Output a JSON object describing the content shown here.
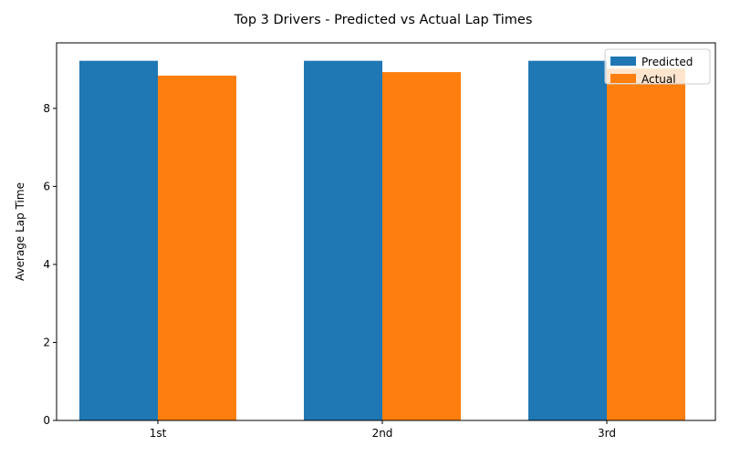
{
  "chart_data": {
    "type": "bar",
    "title": "Top 3 Drivers - Predicted vs Actual Lap Times",
    "xlabel": "",
    "ylabel": "Average Lap Time",
    "categories": [
      "1st",
      "2nd",
      "3rd"
    ],
    "series": [
      {
        "name": "Predicted",
        "color": "#1f77b4",
        "values": [
          9.22,
          9.22,
          9.22
        ]
      },
      {
        "name": "Actual",
        "color": "#ff7f0e",
        "values": [
          8.84,
          8.93,
          9.02
        ]
      }
    ],
    "ylim": [
      0,
      9.68
    ],
    "yticks": [
      0,
      2,
      4,
      6,
      8
    ],
    "grid": false,
    "legend_position": "top-right"
  }
}
